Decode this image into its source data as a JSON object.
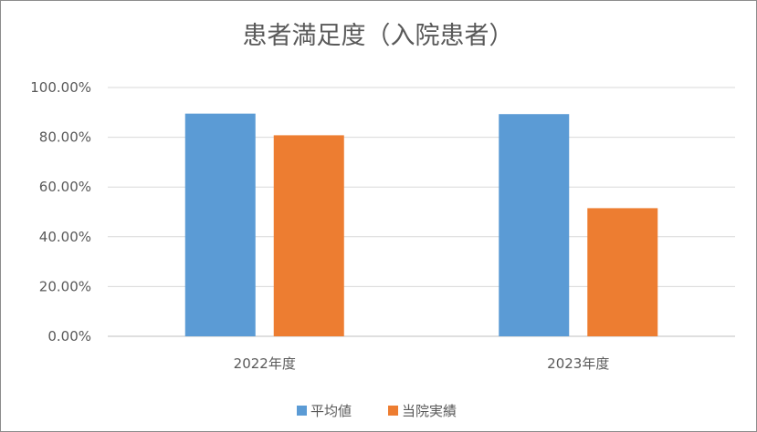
{
  "chart_data": {
    "type": "bar",
    "title": "患者満足度（入院患者）",
    "categories": [
      "2022年度",
      "2023年度"
    ],
    "series": [
      {
        "name": "平均値",
        "color": "#5b9bd5",
        "values": [
          89.5,
          89.3
        ]
      },
      {
        "name": "当院実績",
        "color": "#ed7d31",
        "values": [
          80.8,
          51.5
        ]
      }
    ],
    "ylim": [
      0,
      100
    ],
    "yticks": [
      0,
      20,
      40,
      60,
      80,
      100
    ],
    "ytick_labels": [
      "0.00%",
      "20.00%",
      "40.00%",
      "60.00%",
      "80.00%",
      "100.00%"
    ],
    "grid": true,
    "legend": "bottom",
    "xlabel": "",
    "ylabel": ""
  }
}
